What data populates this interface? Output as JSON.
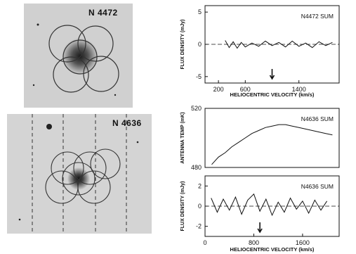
{
  "figure": {
    "galaxy_top_label": "N 4472",
    "galaxy_bottom_label": "N 4636"
  },
  "chart_data": [
    {
      "type": "line",
      "title": "N4472 SUM",
      "xlabel": "HELIOCENTRIC VELOCITY (km/s)",
      "ylabel": "FLUX DENSITY (mJy)",
      "xlim": [
        0,
        2000
      ],
      "ylim": [
        -6,
        6
      ],
      "xticks": [
        "200",
        "600",
        "1400"
      ],
      "yticks": [
        "5",
        "0",
        "-5"
      ],
      "arrow_x": 1000,
      "series": [
        {
          "x": [
            300,
            360,
            420,
            480,
            540,
            600,
            700,
            800,
            900,
            1000,
            1100,
            1200,
            1300,
            1400,
            1500,
            1600,
            1700,
            1800,
            1900
          ],
          "y": [
            0.6,
            -0.5,
            0.4,
            -0.6,
            0.3,
            -0.4,
            0.2,
            -0.3,
            0.5,
            -0.2,
            0.3,
            -0.4,
            0.5,
            -0.3,
            0.2,
            -0.5,
            0.4,
            -0.2,
            0.3
          ]
        }
      ]
    },
    {
      "type": "line",
      "title": "N4636 SUM",
      "xlabel": "",
      "ylabel": "ANTENNA TEMP (mK)",
      "xlim": [
        0,
        2000
      ],
      "ylim": [
        480,
        520
      ],
      "xticks": [],
      "yticks": [
        "520",
        "480"
      ],
      "series": [
        {
          "x": [
            100,
            200,
            300,
            400,
            500,
            600,
            700,
            800,
            900,
            1000,
            1100,
            1200,
            1300,
            1400,
            1500,
            1600,
            1700,
            1800,
            1900
          ],
          "y": [
            482,
            487,
            490,
            494,
            497,
            500,
            503,
            505,
            507,
            508,
            509,
            509,
            508,
            507,
            506,
            505,
            504,
            503,
            502
          ]
        }
      ]
    },
    {
      "type": "line",
      "title": "N4636 SUM",
      "xlabel": "HELIOCENTRIC VELOCITY (km/s)",
      "ylabel": "FLUX DENSITY (mJy)",
      "xlim": [
        0,
        2200
      ],
      "ylim": [
        -3,
        3
      ],
      "xticks": [
        "0",
        "800",
        "1600"
      ],
      "yticks": [
        "2",
        "0",
        "-2"
      ],
      "arrow_x": 900,
      "series": [
        {
          "x": [
            100,
            200,
            300,
            400,
            500,
            600,
            700,
            800,
            900,
            1000,
            1100,
            1200,
            1300,
            1400,
            1500,
            1600,
            1700,
            1800,
            1900,
            2000
          ],
          "y": [
            0.8,
            -0.6,
            0.7,
            -0.4,
            0.9,
            -0.8,
            0.6,
            1.2,
            -0.5,
            0.7,
            -0.9,
            0.4,
            -0.6,
            0.8,
            -0.3,
            0.5,
            -0.7,
            0.6,
            -0.4,
            0.5
          ]
        }
      ]
    }
  ]
}
